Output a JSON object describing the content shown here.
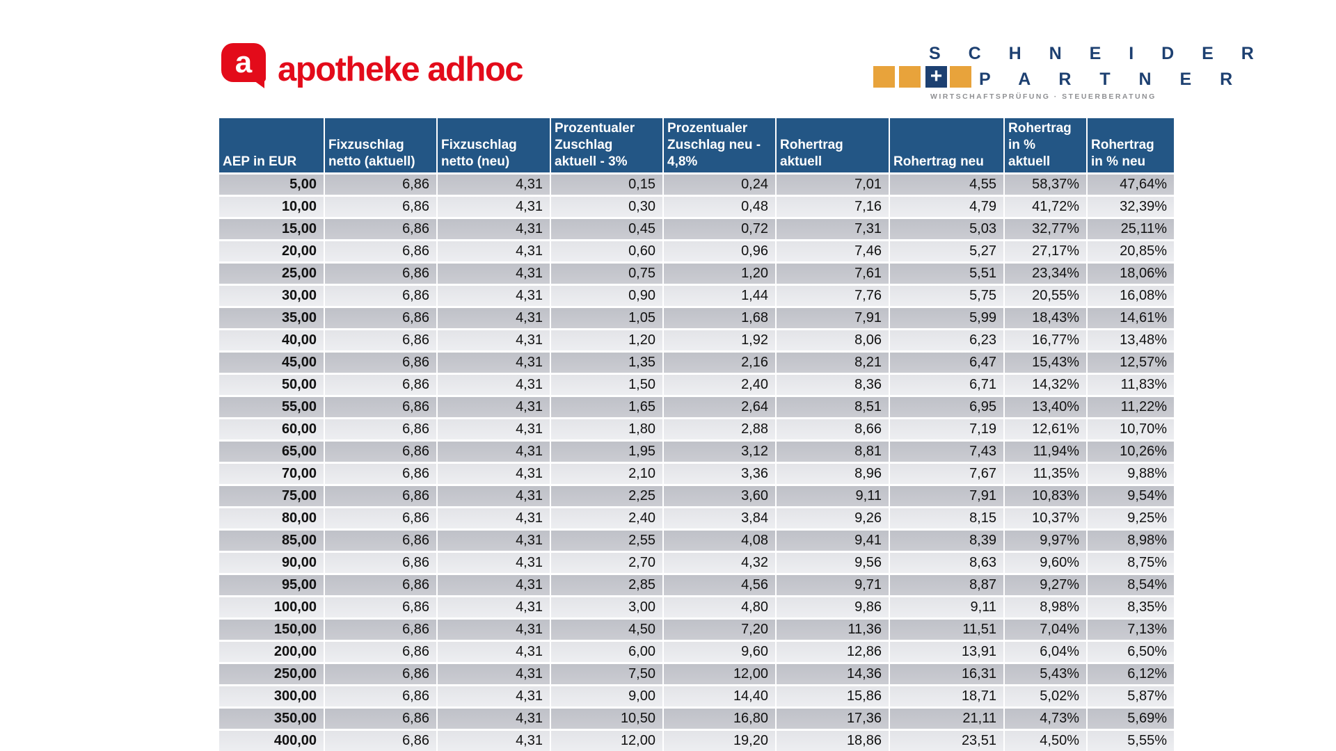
{
  "logos": {
    "apotheke": {
      "bubble_letter": "a",
      "wordmark": "apotheke adhoc",
      "brand_red": "#e30b1a"
    },
    "schneider": {
      "line1": "S C H N E I D E R",
      "line2": "P A R T N E R",
      "plus": "+",
      "tagline": "WIRTSCHAFTSPRÜFUNG · STEUERBERATUNG",
      "navy": "#1d4071",
      "gold": "#e8a33b",
      "gray": "#8f9093"
    }
  },
  "table_style": {
    "header_bg": "#235685",
    "row_dark": "#c4c6cc",
    "row_light": "#e7e8ec"
  },
  "chart_data": {
    "type": "table",
    "title": "",
    "columns": [
      "AEP in EUR",
      "Fixzuschlag\nnetto (aktuell)",
      "Fixzuschlag\nnetto (neu)",
      "Prozentualer\nZuschlag\naktuell - 3%",
      "Prozentualer\nZuschlag neu -\n4,8%",
      "Rohertrag\naktuell",
      "Rohertrag neu",
      "Rohertrag\nin %\naktuell",
      "Rohertrag\nin % neu"
    ],
    "rows": [
      [
        "5,00",
        "6,86",
        "4,31",
        "0,15",
        "0,24",
        "7,01",
        "4,55",
        "58,37%",
        "47,64%"
      ],
      [
        "10,00",
        "6,86",
        "4,31",
        "0,30",
        "0,48",
        "7,16",
        "4,79",
        "41,72%",
        "32,39%"
      ],
      [
        "15,00",
        "6,86",
        "4,31",
        "0,45",
        "0,72",
        "7,31",
        "5,03",
        "32,77%",
        "25,11%"
      ],
      [
        "20,00",
        "6,86",
        "4,31",
        "0,60",
        "0,96",
        "7,46",
        "5,27",
        "27,17%",
        "20,85%"
      ],
      [
        "25,00",
        "6,86",
        "4,31",
        "0,75",
        "1,20",
        "7,61",
        "5,51",
        "23,34%",
        "18,06%"
      ],
      [
        "30,00",
        "6,86",
        "4,31",
        "0,90",
        "1,44",
        "7,76",
        "5,75",
        "20,55%",
        "16,08%"
      ],
      [
        "35,00",
        "6,86",
        "4,31",
        "1,05",
        "1,68",
        "7,91",
        "5,99",
        "18,43%",
        "14,61%"
      ],
      [
        "40,00",
        "6,86",
        "4,31",
        "1,20",
        "1,92",
        "8,06",
        "6,23",
        "16,77%",
        "13,48%"
      ],
      [
        "45,00",
        "6,86",
        "4,31",
        "1,35",
        "2,16",
        "8,21",
        "6,47",
        "15,43%",
        "12,57%"
      ],
      [
        "50,00",
        "6,86",
        "4,31",
        "1,50",
        "2,40",
        "8,36",
        "6,71",
        "14,32%",
        "11,83%"
      ],
      [
        "55,00",
        "6,86",
        "4,31",
        "1,65",
        "2,64",
        "8,51",
        "6,95",
        "13,40%",
        "11,22%"
      ],
      [
        "60,00",
        "6,86",
        "4,31",
        "1,80",
        "2,88",
        "8,66",
        "7,19",
        "12,61%",
        "10,70%"
      ],
      [
        "65,00",
        "6,86",
        "4,31",
        "1,95",
        "3,12",
        "8,81",
        "7,43",
        "11,94%",
        "10,26%"
      ],
      [
        "70,00",
        "6,86",
        "4,31",
        "2,10",
        "3,36",
        "8,96",
        "7,67",
        "11,35%",
        "9,88%"
      ],
      [
        "75,00",
        "6,86",
        "4,31",
        "2,25",
        "3,60",
        "9,11",
        "7,91",
        "10,83%",
        "9,54%"
      ],
      [
        "80,00",
        "6,86",
        "4,31",
        "2,40",
        "3,84",
        "9,26",
        "8,15",
        "10,37%",
        "9,25%"
      ],
      [
        "85,00",
        "6,86",
        "4,31",
        "2,55",
        "4,08",
        "9,41",
        "8,39",
        "9,97%",
        "8,98%"
      ],
      [
        "90,00",
        "6,86",
        "4,31",
        "2,70",
        "4,32",
        "9,56",
        "8,63",
        "9,60%",
        "8,75%"
      ],
      [
        "95,00",
        "6,86",
        "4,31",
        "2,85",
        "4,56",
        "9,71",
        "8,87",
        "9,27%",
        "8,54%"
      ],
      [
        "100,00",
        "6,86",
        "4,31",
        "3,00",
        "4,80",
        "9,86",
        "9,11",
        "8,98%",
        "8,35%"
      ],
      [
        "150,00",
        "6,86",
        "4,31",
        "4,50",
        "7,20",
        "11,36",
        "11,51",
        "7,04%",
        "7,13%"
      ],
      [
        "200,00",
        "6,86",
        "4,31",
        "6,00",
        "9,60",
        "12,86",
        "13,91",
        "6,04%",
        "6,50%"
      ],
      [
        "250,00",
        "6,86",
        "4,31",
        "7,50",
        "12,00",
        "14,36",
        "16,31",
        "5,43%",
        "6,12%"
      ],
      [
        "300,00",
        "6,86",
        "4,31",
        "9,00",
        "14,40",
        "15,86",
        "18,71",
        "5,02%",
        "5,87%"
      ],
      [
        "350,00",
        "6,86",
        "4,31",
        "10,50",
        "16,80",
        "17,36",
        "21,11",
        "4,73%",
        "5,69%"
      ],
      [
        "400,00",
        "6,86",
        "4,31",
        "12,00",
        "19,20",
        "18,86",
        "23,51",
        "4,50%",
        "5,55%"
      ]
    ]
  }
}
